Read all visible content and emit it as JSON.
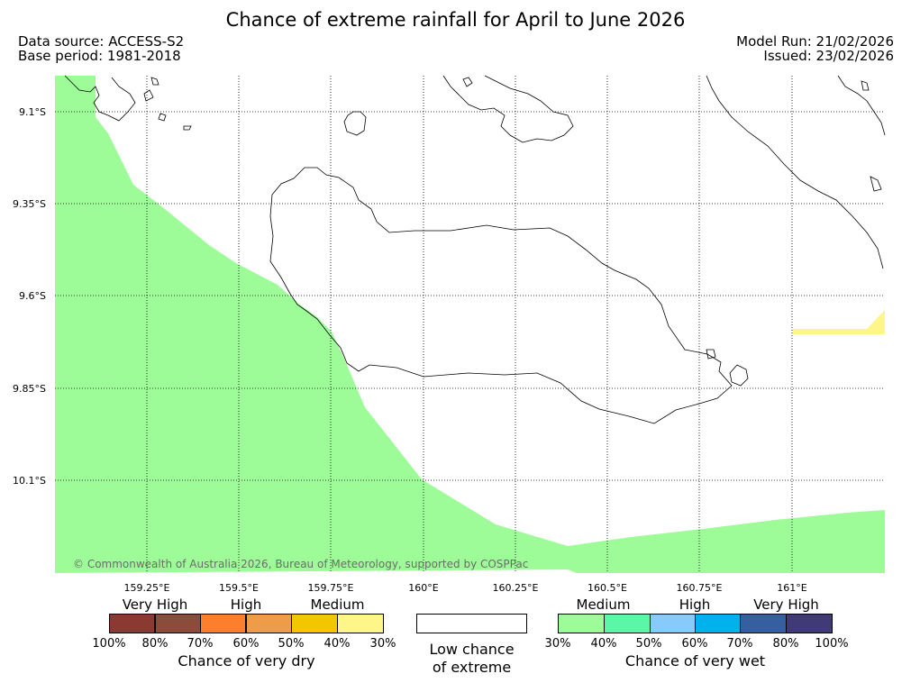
{
  "title": "Chance of extreme rainfall for April to June 2026",
  "header": {
    "data_source": "Data source: ACCESS-S2",
    "base_period": "Base period: 1981-2018",
    "model_run": "Model Run: 21/02/2026",
    "issued": "Issued: 23/02/2026"
  },
  "map": {
    "lat_labels": [
      "9.1°S",
      "9.35°S",
      "9.6°S",
      "9.85°S",
      "10.1°S"
    ],
    "lon_labels": [
      "159.25°E",
      "159.5°E",
      "159.75°E",
      "160°E",
      "160.25°E",
      "160.5°E",
      "160.75°E",
      "161°E"
    ],
    "copyright": "© Commonwealth of Australia 2026, Bureau of Meteorology, supported by COSPPac",
    "colors": {
      "very_wet_medium": "#9efc98",
      "very_dry_medium": "#fff68a",
      "land_outline": "#000000"
    }
  },
  "legend": {
    "dry": {
      "categories": [
        "Very High",
        "High",
        "Medium"
      ],
      "colors": [
        "#8b3a32",
        "#8b4c3c",
        "#fd7f2b",
        "#ef9c4a",
        "#f2c700",
        "#fff68a"
      ],
      "percent_labels": [
        "100%",
        "80%",
        "70%",
        "60%",
        "50%",
        "40%",
        "30%"
      ],
      "caption": "Chance of very dry"
    },
    "low": {
      "caption_line1": "Low chance",
      "caption_line2": "of extreme"
    },
    "wet": {
      "categories": [
        "Medium",
        "High",
        "Very High"
      ],
      "colors": [
        "#9efc98",
        "#5af7a6",
        "#86cbfb",
        "#00b1ec",
        "#355f9e",
        "#403a76"
      ],
      "percent_labels": [
        "30%",
        "40%",
        "50%",
        "60%",
        "70%",
        "80%",
        "100%"
      ],
      "caption": "Chance of very wet"
    }
  }
}
